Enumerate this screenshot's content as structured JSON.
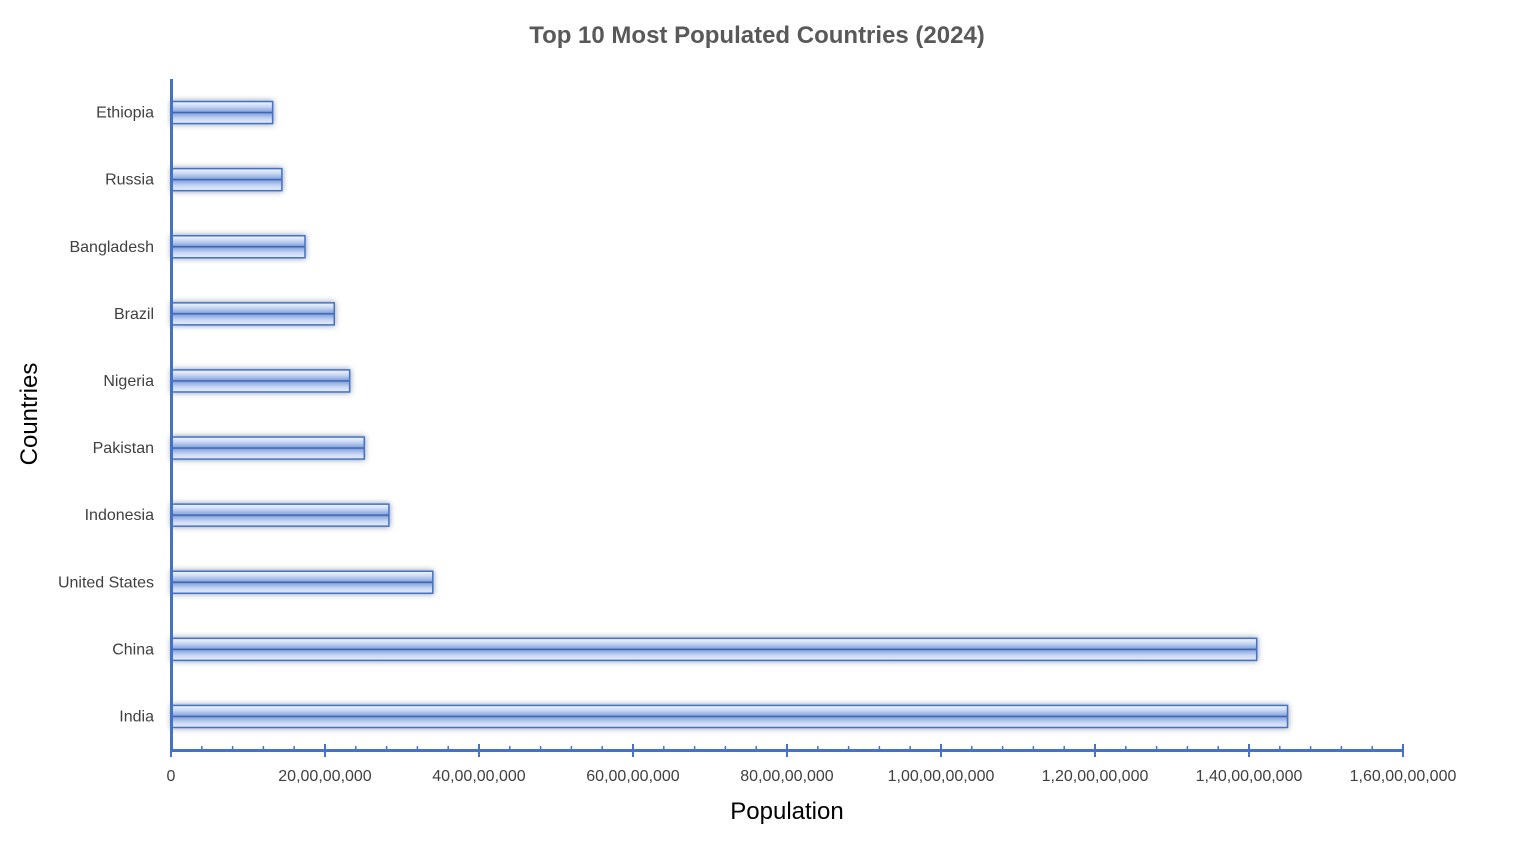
{
  "chart_data": {
    "type": "bar",
    "orientation": "horizontal",
    "title": "Top 10 Most Populated Countries (2024)",
    "xlabel": "Population",
    "ylabel": "Countries",
    "categories": [
      "India",
      "China",
      "United States",
      "Indonesia",
      "Pakistan",
      "Nigeria",
      "Brazil",
      "Bangladesh",
      "Russia",
      "Ethiopia"
    ],
    "values": [
      1450000000,
      1410000000,
      340000000,
      283000000,
      251000000,
      232000000,
      212000000,
      174000000,
      144000000,
      132000000
    ],
    "xlim": [
      0,
      1600000000
    ],
    "xticks": [
      "0",
      "20,00,00,000",
      "40,00,00,000",
      "60,00,00,000",
      "80,00,00,000",
      "1,00,00,00,000",
      "1,20,00,00,000",
      "1,40,00,00,000",
      "1,60,00,00,000"
    ],
    "grid": false,
    "legend": "none",
    "colors": {
      "bar_light": "#e4ecfb",
      "bar_mid": "#a9c1ee",
      "bar_dark": "#2f58a8",
      "bar_stroke": "#4472c4",
      "axis": "#4472c4"
    }
  }
}
